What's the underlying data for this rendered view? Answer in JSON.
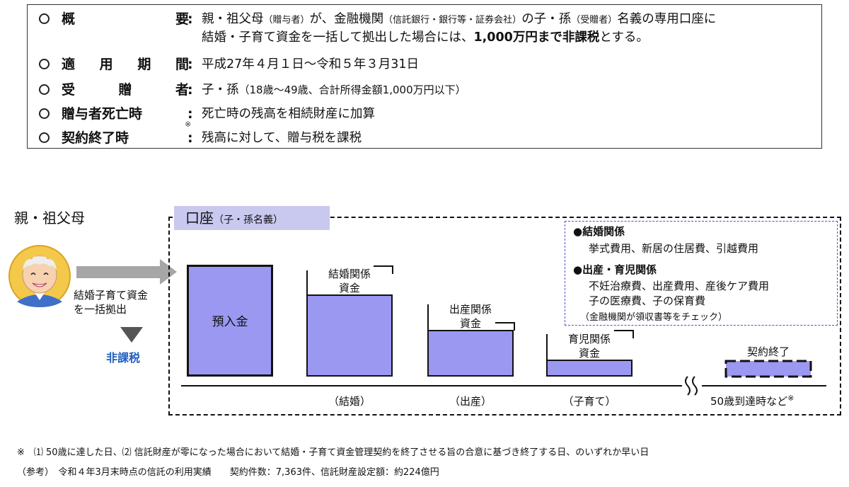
{
  "summary": {
    "rows": [
      {
        "label_chars": [
          "概",
          "要"
        ],
        "value_line1_parts": [
          "親・祖父母",
          "（贈与者）",
          "が、金融機関",
          "（信託銀行・銀行等・証券会社）",
          "の子・孫",
          "（受贈者）",
          "名義の専用口座に"
        ],
        "value_line2_pre": "結婚・子育て資金を一括して拠出した場合には、",
        "value_line2_bold": "1,000万円まで非課税",
        "value_line2_post": "とする。"
      },
      {
        "label_chars": [
          "適",
          "用",
          "期",
          "間"
        ],
        "value": "平成27年４月１日～令和５年３月31日"
      },
      {
        "label_chars": [
          "受",
          "贈",
          "者"
        ],
        "value_main": "子・孫",
        "value_small": "（18歳～49歳、合計所得金額1,000万円以下）"
      },
      {
        "label": "贈与者死亡時",
        "value": "死亡時の残高を相続財産に加算"
      },
      {
        "label": "契約終了時",
        "note_mark": "※",
        "value": "残高に対して、贈与税を課税"
      }
    ],
    "colon": ":"
  },
  "diagram": {
    "parent_label": "親・祖父母",
    "lump_sum_line1": "結婚子育て資金",
    "lump_sum_line2": "を一括拠出",
    "tax_free": "非課税",
    "account_title": "口座",
    "account_title_small": "（子・孫名義）",
    "deposit_label": "預入金",
    "marriage_funds_line1": "結婚関係",
    "marriage_funds_line2": "資金",
    "birth_funds_line1": "出産関係",
    "birth_funds_line2": "資金",
    "childcare_funds_line1": "育児関係",
    "childcare_funds_line2": "資金",
    "contract_end_label": "契約終了",
    "axis_labels": {
      "marriage": "（結婚）",
      "birth": "（出産）",
      "childcare": "（子育て）",
      "end": "50歳到達時など",
      "end_mark": "※"
    },
    "legend": {
      "marriage_head": "●結婚関係",
      "marriage_items": "挙式費用、新居の住居費、引越費用",
      "birth_head": "●出産・育児関係",
      "birth_items_line1": "不妊治療費、出産費用、産後ケア費用",
      "birth_items_line2": "子の医療費、子の保育費",
      "note": "（金融機関が領収書等をチェック）"
    },
    "colors": {
      "bar_fill": "#9b98f2",
      "title_bg": "#c9c8ef",
      "tax_free_text": "#1f5fbf",
      "legend_border": "#4a52d6",
      "arrow_gray": "#a6a6a6"
    }
  },
  "footnote": "※　⑴ 50歳に達した日、⑵ 信託財産が零になった場合において結婚・子育て資金管理契約を終了させる旨の合意に基づき終了する日、のいずれか早い日",
  "reference": "（参考）　令和４年3月末時点の信託の利用実績　　契約件数：7,363件、信託財産設定額：約224億円"
}
